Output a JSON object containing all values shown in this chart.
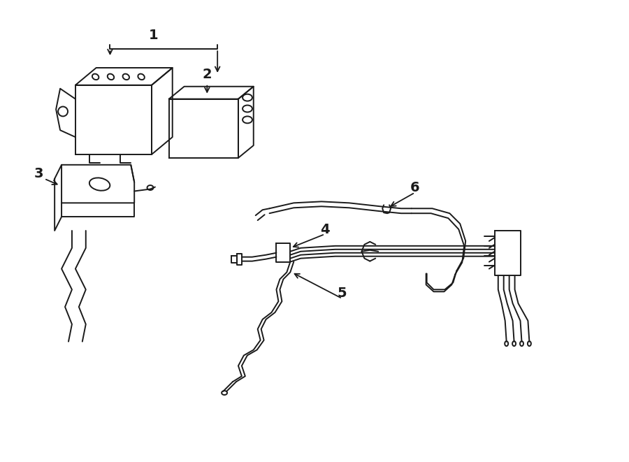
{
  "background_color": "#ffffff",
  "line_color": "#1a1a1a",
  "line_width": 1.4,
  "label_fontsize": 13,
  "fig_width": 9.0,
  "fig_height": 6.61
}
